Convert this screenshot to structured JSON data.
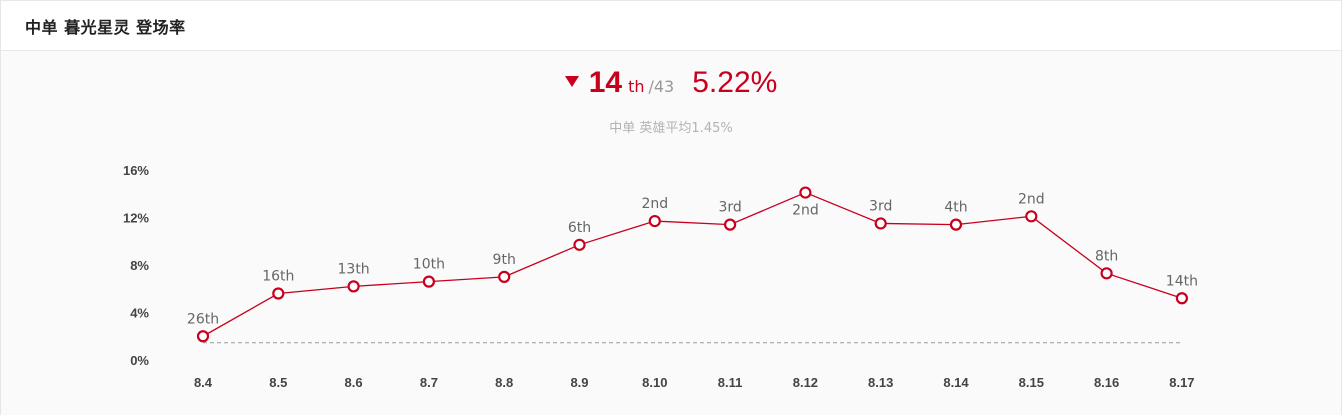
{
  "header": {
    "title": "中单 暮光星灵 登场率"
  },
  "summary": {
    "trend_icon": "down-triangle-icon",
    "rank": "14",
    "rank_suffix": "th",
    "total": "/43",
    "rate": "5.22%",
    "subline": "中单 英雄平均1.45%"
  },
  "colors": {
    "accent": "#c8001e",
    "label": "#666666",
    "reference_line": "#9a9a9a"
  },
  "chart_data": {
    "type": "line",
    "categories": [
      "8.4",
      "8.5",
      "8.6",
      "8.7",
      "8.8",
      "8.9",
      "8.10",
      "8.11",
      "8.12",
      "8.13",
      "8.14",
      "8.15",
      "8.16",
      "8.17"
    ],
    "series": [
      {
        "values": [
          2.0,
          5.6,
          6.2,
          6.6,
          7.0,
          9.7,
          11.7,
          11.4,
          14.1,
          11.5,
          11.4,
          12.1,
          7.3,
          5.2
        ],
        "point_labels": [
          "26th",
          "16th",
          "13th",
          "10th",
          "9th",
          "6th",
          "2nd",
          "3rd",
          "2nd",
          "3rd",
          "4th",
          "2nd",
          "8th",
          "14th"
        ]
      }
    ],
    "reference_line": {
      "value": 1.45
    },
    "y_ticks": [
      "0%",
      "4%",
      "8%",
      "12%",
      "16%"
    ],
    "y_tick_values": [
      0,
      4,
      8,
      12,
      16
    ],
    "ylim": [
      0,
      16
    ]
  }
}
